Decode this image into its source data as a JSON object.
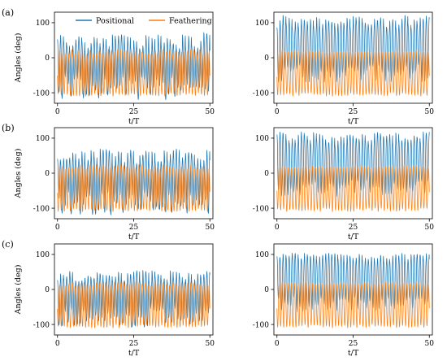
{
  "chart_data": {
    "type": "line",
    "layout": "3x2 grid of subplots",
    "panel_labels": [
      "(a)",
      "(b)",
      "(c)"
    ],
    "legend": {
      "placement": "top, inside first subplot",
      "entries": [
        "Positional",
        "Feathering"
      ]
    },
    "colors": {
      "Positional": "#1f77b4",
      "Feathering": "#ff7f0e"
    },
    "xlabel": "t/T",
    "ylabel": "Angles (deg)",
    "xlim": [
      -1,
      51
    ],
    "xticks": [
      0,
      25,
      50
    ],
    "ylim": [
      -130,
      130
    ],
    "yticks": [
      -100,
      0,
      100
    ],
    "grid": false,
    "series_model": {
      "x_range": [
        0,
        50
      ],
      "samples_per_period": 18,
      "periods_shown": 50
    },
    "subplots": [
      {
        "id": "a-left",
        "row": 0,
        "col": 0,
        "show_ylabel": true,
        "panel_label": "(a)",
        "series": [
          {
            "name": "Positional",
            "peak_range": [
              18,
              72
            ],
            "trough_range": [
              -120,
              -55
            ]
          },
          {
            "name": "Feathering",
            "peak_range": [
              10,
              25
            ],
            "trough_range": [
              -110,
              -100
            ]
          }
        ]
      },
      {
        "id": "a-right",
        "row": 0,
        "col": 1,
        "show_ylabel": false,
        "series": [
          {
            "name": "Positional",
            "peak_range": [
              85,
              122
            ],
            "trough_range": [
              -70,
              -20
            ]
          },
          {
            "name": "Feathering",
            "peak_range": [
              15,
              22
            ],
            "trough_range": [
              -110,
              -100
            ]
          }
        ]
      },
      {
        "id": "b-left",
        "row": 1,
        "col": 0,
        "show_ylabel": true,
        "panel_label": "(b)",
        "series": [
          {
            "name": "Positional",
            "peak_range": [
              20,
              70
            ],
            "trough_range": [
              -120,
              -55
            ]
          },
          {
            "name": "Feathering",
            "peak_range": [
              10,
              25
            ],
            "trough_range": [
              -110,
              -100
            ]
          }
        ]
      },
      {
        "id": "b-right",
        "row": 1,
        "col": 1,
        "show_ylabel": false,
        "series": [
          {
            "name": "Positional",
            "peak_range": [
              80,
              118
            ],
            "trough_range": [
              -70,
              -20
            ]
          },
          {
            "name": "Feathering",
            "peak_range": [
              15,
              22
            ],
            "trough_range": [
              -110,
              -100
            ]
          }
        ]
      },
      {
        "id": "c-left",
        "row": 2,
        "col": 0,
        "show_ylabel": true,
        "panel_label": "(c)",
        "series": [
          {
            "name": "Positional",
            "peak_range": [
              20,
              55
            ],
            "trough_range": [
              -110,
              -55
            ]
          },
          {
            "name": "Feathering",
            "peak_range": [
              10,
              22
            ],
            "trough_range": [
              -110,
              -100
            ]
          }
        ]
      },
      {
        "id": "c-right",
        "row": 2,
        "col": 1,
        "show_ylabel": false,
        "series": [
          {
            "name": "Positional",
            "peak_range": [
              80,
              105
            ],
            "trough_range": [
              -65,
              -20
            ]
          },
          {
            "name": "Feathering",
            "peak_range": [
              15,
              22
            ],
            "trough_range": [
              -110,
              -100
            ]
          }
        ]
      }
    ]
  }
}
